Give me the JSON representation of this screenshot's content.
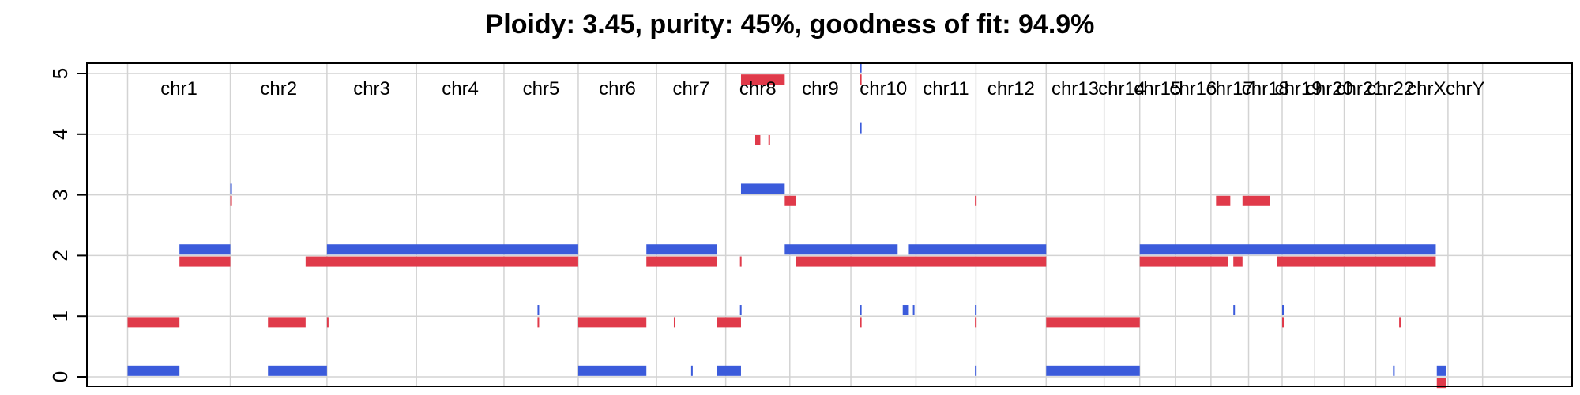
{
  "chart_data": {
    "type": "segments",
    "title": "Ploidy: 3.45, purity: 45%, goodness of fit: 94.9%",
    "xlabel": "",
    "ylabel": "",
    "ylim": [
      0,
      5
    ],
    "yticks": [
      0,
      1,
      2,
      3,
      4,
      5
    ],
    "grid": true,
    "colors": {
      "major": "#3b5bdb",
      "minor": "#e03a4a"
    },
    "x_range": [
      0,
      1460
    ],
    "chromosomes": [
      {
        "name": "chr1",
        "start": 40,
        "end": 141
      },
      {
        "name": "chr2",
        "start": 141,
        "end": 236
      },
      {
        "name": "chr3",
        "start": 236,
        "end": 324
      },
      {
        "name": "chr4",
        "start": 324,
        "end": 410
      },
      {
        "name": "chr5",
        "start": 410,
        "end": 483
      },
      {
        "name": "chr6",
        "start": 483,
        "end": 560
      },
      {
        "name": "chr7",
        "start": 560,
        "end": 628
      },
      {
        "name": "chr8",
        "start": 628,
        "end": 691
      },
      {
        "name": "chr9",
        "start": 691,
        "end": 751
      },
      {
        "name": "chr10",
        "start": 751,
        "end": 815
      },
      {
        "name": "chr11",
        "start": 815,
        "end": 874
      },
      {
        "name": "chr12",
        "start": 874,
        "end": 943
      },
      {
        "name": "chr13",
        "start": 943,
        "end": 1000
      },
      {
        "name": "chr14",
        "start": 1000,
        "end": 1035
      },
      {
        "name": "chr15",
        "start": 1035,
        "end": 1070
      },
      {
        "name": "chr16",
        "start": 1070,
        "end": 1105
      },
      {
        "name": "chr17",
        "start": 1105,
        "end": 1142
      },
      {
        "name": "chr18",
        "start": 1142,
        "end": 1175
      },
      {
        "name": "chr19",
        "start": 1175,
        "end": 1207
      },
      {
        "name": "chr20",
        "start": 1207,
        "end": 1236
      },
      {
        "name": "chr21",
        "start": 1236,
        "end": 1267
      },
      {
        "name": "chr22",
        "start": 1267,
        "end": 1296
      },
      {
        "name": "chrX",
        "start": 1296,
        "end": 1338
      },
      {
        "name": "chrY",
        "start": 1338,
        "end": 1372
      }
    ],
    "chromosome_labels": [
      "chr1",
      "chr2",
      "chr3",
      "chr4",
      "chr5",
      "chr6",
      "chr7",
      "chr8",
      "chr9",
      "chr10",
      "chr11",
      "chr12",
      "chr13",
      "chr14",
      "chr15",
      "chr16",
      "chr17",
      "chr18",
      "chr19",
      "chr20",
      "chr21",
      "chr22",
      "chrX",
      "chrY"
    ],
    "series": [
      {
        "color": "#3b5bdb",
        "segments": [
          {
            "x0": 40,
            "x1": 91,
            "y": 0.1
          },
          {
            "x0": 91,
            "x1": 141,
            "y": 2.1
          },
          {
            "x0": 141,
            "x1": 142,
            "y": 3.1
          },
          {
            "x0": 178,
            "x1": 236,
            "y": 0.1
          },
          {
            "x0": 236,
            "x1": 483,
            "y": 2.1
          },
          {
            "x0": 443,
            "x1": 444,
            "y": 1.1
          },
          {
            "x0": 483,
            "x1": 550,
            "y": 0.1
          },
          {
            "x0": 550,
            "x1": 619,
            "y": 2.1
          },
          {
            "x0": 594,
            "x1": 595,
            "y": 0.1
          },
          {
            "x0": 619,
            "x1": 643,
            "y": 0.1
          },
          {
            "x0": 642,
            "x1": 643,
            "y": 1.1
          },
          {
            "x0": 643,
            "x1": 686,
            "y": 3.1
          },
          {
            "x0": 686,
            "x1": 797,
            "y": 2.1
          },
          {
            "x0": 760,
            "x1": 761,
            "y": 1.1
          },
          {
            "x0": 760,
            "x1": 761,
            "y": 4.1
          },
          {
            "x0": 760,
            "x1": 761,
            "y": 5.1
          },
          {
            "x0": 802,
            "x1": 808,
            "y": 1.1
          },
          {
            "x0": 812,
            "x1": 813,
            "y": 1.1
          },
          {
            "x0": 808,
            "x1": 943,
            "y": 2.1
          },
          {
            "x0": 873,
            "x1": 874,
            "y": 1.1
          },
          {
            "x0": 873,
            "x1": 874,
            "y": 0.1
          },
          {
            "x0": 943,
            "x1": 1035,
            "y": 0.1
          },
          {
            "x0": 1035,
            "x1": 1326,
            "y": 2.1
          },
          {
            "x0": 1127,
            "x1": 1128,
            "y": 1.1
          },
          {
            "x0": 1175,
            "x1": 1176,
            "y": 1.1
          },
          {
            "x0": 1284,
            "x1": 1285,
            "y": 0.1
          },
          {
            "x0": 1327,
            "x1": 1336,
            "y": 0.1
          }
        ]
      },
      {
        "color": "#e03a4a",
        "segments": [
          {
            "x0": 40,
            "x1": 91,
            "y": 0.9
          },
          {
            "x0": 91,
            "x1": 141,
            "y": 1.9
          },
          {
            "x0": 141,
            "x1": 142,
            "y": 2.9
          },
          {
            "x0": 178,
            "x1": 215,
            "y": 0.9
          },
          {
            "x0": 215,
            "x1": 483,
            "y": 1.9
          },
          {
            "x0": 236,
            "x1": 237,
            "y": 0.9
          },
          {
            "x0": 443,
            "x1": 444,
            "y": 0.9
          },
          {
            "x0": 483,
            "x1": 550,
            "y": 0.9
          },
          {
            "x0": 550,
            "x1": 619,
            "y": 1.9
          },
          {
            "x0": 577,
            "x1": 578,
            "y": 0.9
          },
          {
            "x0": 619,
            "x1": 643,
            "y": 0.9
          },
          {
            "x0": 642,
            "x1": 643,
            "y": 1.9
          },
          {
            "x0": 643,
            "x1": 686,
            "y": 4.9
          },
          {
            "x0": 657,
            "x1": 662,
            "y": 3.9
          },
          {
            "x0": 670,
            "x1": 671,
            "y": 3.9
          },
          {
            "x0": 686,
            "x1": 697,
            "y": 2.9
          },
          {
            "x0": 697,
            "x1": 943,
            "y": 1.9
          },
          {
            "x0": 760,
            "x1": 761,
            "y": 4.9
          },
          {
            "x0": 760,
            "x1": 761,
            "y": 0.9
          },
          {
            "x0": 873,
            "x1": 874,
            "y": 2.9
          },
          {
            "x0": 873,
            "x1": 874,
            "y": 0.9
          },
          {
            "x0": 943,
            "x1": 1035,
            "y": 0.9
          },
          {
            "x0": 1035,
            "x1": 1122,
            "y": 1.9
          },
          {
            "x0": 1110,
            "x1": 1124,
            "y": 2.9
          },
          {
            "x0": 1127,
            "x1": 1136,
            "y": 1.9
          },
          {
            "x0": 1136,
            "x1": 1163,
            "y": 2.9
          },
          {
            "x0": 1170,
            "x1": 1326,
            "y": 1.9
          },
          {
            "x0": 1175,
            "x1": 1176,
            "y": 0.9
          },
          {
            "x0": 1290,
            "x1": 1291,
            "y": 0.9
          },
          {
            "x0": 1327,
            "x1": 1336,
            "y": -0.1
          }
        ]
      }
    ]
  }
}
